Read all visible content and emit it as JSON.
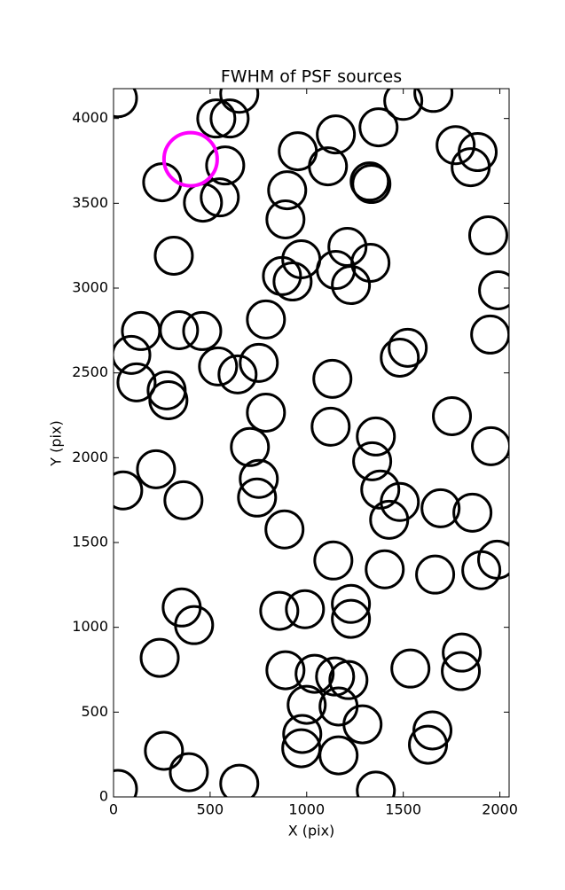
{
  "chart_data": {
    "type": "scatter",
    "title": "FWHM of PSF sources",
    "x_label": "X (pix)",
    "y_label": "Y (pix)",
    "x": [
      23,
      532,
      601,
      651,
      1500,
      1656,
      1372,
      1151,
      954,
      1110,
      578,
      252,
      463,
      550,
      899,
      890,
      1326,
      1335,
      1771,
      1885,
      1849,
      1940,
      1991,
      1950,
      312,
      1211,
      1330,
      972,
      1151,
      872,
      927,
      1229,
      789,
      92,
      142,
      339,
      459,
      119,
      275,
      284,
      541,
      642,
      752,
      1133,
      1482,
      1523,
      789,
      1124,
      1358,
      1752,
      1954,
      706,
      220,
      50,
      752,
      743,
      362,
      1339,
      1381,
      1482,
      1427,
      1693,
      1858,
      885,
      1138,
      1404,
      1665,
      1904,
      1986,
      353,
      417,
      858,
      991,
      1229,
      1229,
      239,
      890,
      1041,
      1147,
      1216,
      1537,
      1803,
      1798,
      1000,
      1165,
      1289,
      977,
      972,
      1165,
      1651,
      1628,
      261,
      390,
      651,
      1358,
      23
    ],
    "values": [
      4120,
      4000,
      4000,
      4146,
      4104,
      4151,
      3948,
      3906,
      3807,
      3718,
      3723,
      3624,
      3504,
      3535,
      3577,
      3405,
      3629,
      3614,
      3843,
      3802,
      3713,
      3311,
      2987,
      2726,
      3191,
      3243,
      3149,
      3170,
      3107,
      3071,
      3039,
      3018,
      2815,
      2606,
      2747,
      2752,
      2747,
      2444,
      2397,
      2339,
      2538,
      2491,
      2559,
      2465,
      2590,
      2648,
      2266,
      2183,
      2125,
      2245,
      2068,
      2063,
      1932,
      1807,
      1875,
      1765,
      1749,
      1979,
      1812,
      1739,
      1634,
      1702,
      1676,
      1577,
      1394,
      1342,
      1311,
      1337,
      1399,
      1117,
      1013,
      1097,
      1107,
      1138,
      1050,
      820,
      747,
      726,
      710,
      689,
      757,
      851,
      742,
      543,
      533,
      428,
      371,
      287,
      245,
      392,
      308,
      272,
      146,
      78,
      37,
      47
    ],
    "color": "#000000",
    "highlight": {
      "x": 399,
      "y": 3760,
      "color": "#ff00ff"
    },
    "xlim": [
      0,
      2048
    ],
    "ylim": [
      0,
      4176
    ],
    "xticks": [
      0,
      500,
      1000,
      1500,
      2000
    ],
    "yticks": [
      0,
      500,
      1000,
      1500,
      2000,
      2500,
      3000,
      3500,
      4000
    ]
  }
}
